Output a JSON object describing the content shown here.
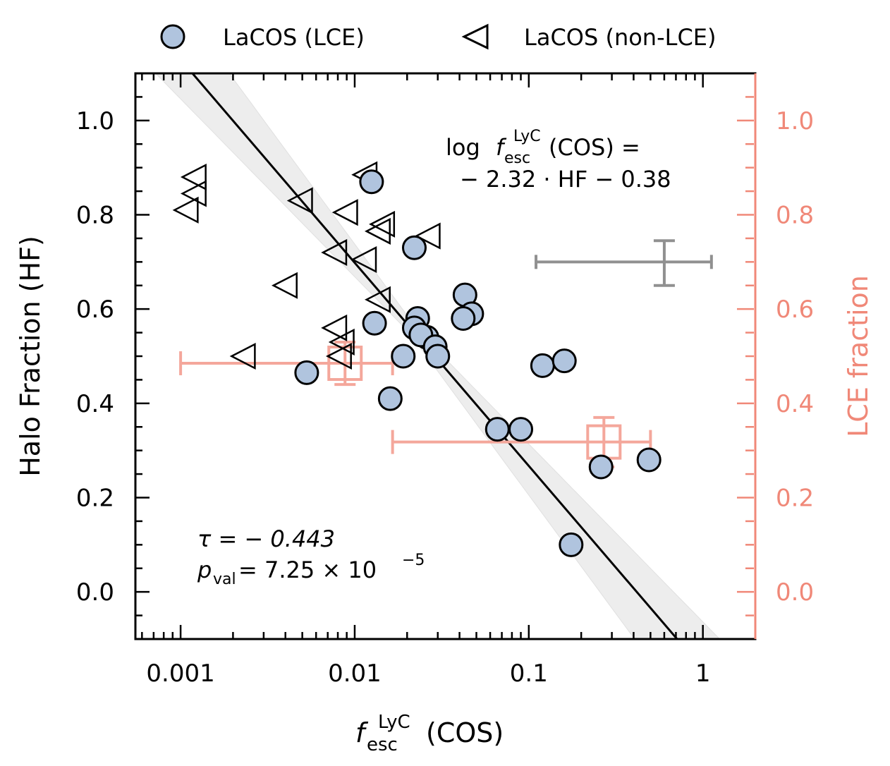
{
  "chart_data": {
    "type": "scatter",
    "xscale": "log",
    "xlim": [
      0.00055,
      2.0
    ],
    "ylim": [
      -0.1,
      1.1
    ],
    "right_ylim": [
      -0.1,
      1.1
    ],
    "xlabel_main": "f",
    "xlabel_sup": "LyC",
    "xlabel_sub": "esc",
    "xlabel_tail": " (COS)",
    "ylabel": "Halo Fraction (HF)",
    "ylabel_right": "LCE fraction",
    "x_ticks": [
      {
        "value": 0.001,
        "label": "0.001"
      },
      {
        "value": 0.01,
        "label": "0.01"
      },
      {
        "value": 0.1,
        "label": "0.1"
      },
      {
        "value": 1,
        "label": "1"
      }
    ],
    "y_ticks": [
      {
        "value": 0.0,
        "label": "0.0"
      },
      {
        "value": 0.2,
        "label": "0.2"
      },
      {
        "value": 0.4,
        "label": "0.4"
      },
      {
        "value": 0.6,
        "label": "0.6"
      },
      {
        "value": 0.8,
        "label": "0.8"
      },
      {
        "value": 1.0,
        "label": "1.0"
      }
    ],
    "legend": [
      {
        "label": "LaCOS (LCE)",
        "marker": "circle",
        "color": "#b0c4de"
      },
      {
        "label": "LaCOS (non-LCE)",
        "marker": "triangle-left",
        "color": "#000000"
      }
    ],
    "series": [
      {
        "name": "LaCOS (LCE)",
        "marker": "circle",
        "points": [
          {
            "x": 0.0125,
            "y": 0.87
          },
          {
            "x": 0.022,
            "y": 0.73
          },
          {
            "x": 0.043,
            "y": 0.63
          },
          {
            "x": 0.047,
            "y": 0.59
          },
          {
            "x": 0.042,
            "y": 0.58
          },
          {
            "x": 0.023,
            "y": 0.58
          },
          {
            "x": 0.013,
            "y": 0.57
          },
          {
            "x": 0.022,
            "y": 0.56
          },
          {
            "x": 0.026,
            "y": 0.54
          },
          {
            "x": 0.024,
            "y": 0.545
          },
          {
            "x": 0.029,
            "y": 0.52
          },
          {
            "x": 0.03,
            "y": 0.5
          },
          {
            "x": 0.019,
            "y": 0.5
          },
          {
            "x": 0.0053,
            "y": 0.465
          },
          {
            "x": 0.12,
            "y": 0.48
          },
          {
            "x": 0.16,
            "y": 0.49
          },
          {
            "x": 0.016,
            "y": 0.41
          },
          {
            "x": 0.066,
            "y": 0.345
          },
          {
            "x": 0.09,
            "y": 0.345
          },
          {
            "x": 0.26,
            "y": 0.265
          },
          {
            "x": 0.49,
            "y": 0.28
          },
          {
            "x": 0.175,
            "y": 0.1
          }
        ]
      },
      {
        "name": "LaCOS (non-LCE)",
        "marker": "triangle-left",
        "points": [
          {
            "x": 0.0012,
            "y": 0.88
          },
          {
            "x": 0.0012,
            "y": 0.845
          },
          {
            "x": 0.00108,
            "y": 0.81
          },
          {
            "x": 0.0049,
            "y": 0.83
          },
          {
            "x": 0.0115,
            "y": 0.885
          },
          {
            "x": 0.0089,
            "y": 0.805
          },
          {
            "x": 0.0145,
            "y": 0.78
          },
          {
            "x": 0.0137,
            "y": 0.765
          },
          {
            "x": 0.0265,
            "y": 0.755
          },
          {
            "x": 0.0077,
            "y": 0.72
          },
          {
            "x": 0.0114,
            "y": 0.705
          },
          {
            "x": 0.004,
            "y": 0.65
          },
          {
            "x": 0.0137,
            "y": 0.62
          },
          {
            "x": 0.0077,
            "y": 0.56
          },
          {
            "x": 0.0085,
            "y": 0.53
          },
          {
            "x": 0.0082,
            "y": 0.5
          },
          {
            "x": 0.0023,
            "y": 0.5
          }
        ]
      }
    ],
    "fit": {
      "slope": -2.32,
      "intercept": -0.38,
      "label_line1_prefix": "log ",
      "label_line1_suffix": " (COS) =",
      "label_line2": "− 2.32 · HF − 0.38"
    },
    "typical_error": {
      "x": 0.6,
      "y": 0.7,
      "x_low": 0.11,
      "x_high": 1.12,
      "y_low": 0.65,
      "y_high": 0.745
    },
    "lce_fraction_bins": [
      {
        "x": 0.0088,
        "y": 0.485,
        "x_low": 0.001,
        "x_high": 0.0165,
        "y_low": 0.44,
        "y_high": 0.53
      },
      {
        "x": 0.27,
        "y": 0.318,
        "x_low": 0.0165,
        "x_high": 0.5,
        "y_low": 0.265,
        "y_high": 0.37
      }
    ],
    "stats": {
      "tau_label": "τ = − 0.443",
      "p_symbol": "p",
      "p_sub": "val",
      "p_value_text": " = 7.25 × 10",
      "p_exp": "−5"
    },
    "colors": {
      "lce_fill": "#b0c4de",
      "right_axis": "#f08878",
      "bins": "#f4a79b",
      "band": "#e8e8e8",
      "errbar": "#909090"
    }
  }
}
